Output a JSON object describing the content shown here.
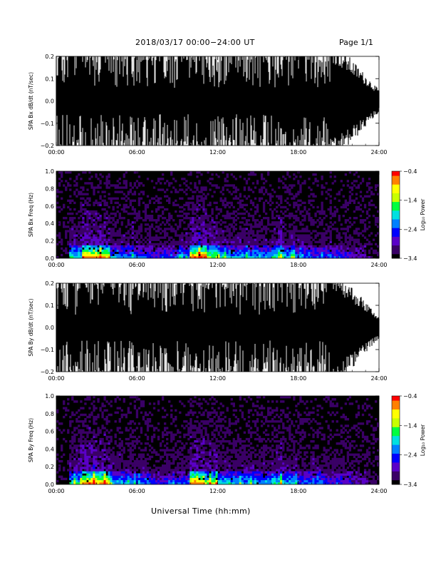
{
  "header": {
    "title": "2018/03/17   00:00−24:00 UT",
    "page": "Page 1/1"
  },
  "footer": {
    "xlabel": "Universal Time (hh:mm)"
  },
  "colors": {
    "trace": "#000000",
    "background": "#000000",
    "colormap": [
      "#000000",
      "#3a0066",
      "#5a00c8",
      "#0000ff",
      "#0080ff",
      "#00e0e0",
      "#00ff40",
      "#c8ff00",
      "#ffff00",
      "#ff8000",
      "#ff0000"
    ]
  },
  "chart_data": [
    {
      "type": "line",
      "ylabel": "SPA Bx dB/dt (nT/sec)",
      "xlim": [
        "00:00",
        "24:00"
      ],
      "xticks": [
        "00:00",
        "06:00",
        "12:00",
        "18:00",
        "24:00"
      ],
      "ylim": [
        -0.2,
        0.2
      ],
      "yticks": [
        "−0.2",
        "−0.1",
        "0.0",
        "0.1",
        "0.2"
      ],
      "description_level": "dense oscillating trace saturating ±0.2 most of the day, amplitude decreasing after 21:00 to about ±0.05 by 24:00"
    },
    {
      "type": "heatmap",
      "ylabel": "SPA Bx Freq (Hz)",
      "xlim": [
        "00:00",
        "24:00"
      ],
      "xticks": [
        "00:00",
        "06:00",
        "12:00",
        "18:00",
        "24:00"
      ],
      "ylim": [
        0.0,
        1.0
      ],
      "yticks": [
        "0.0",
        "0.2",
        "0.4",
        "0.6",
        "0.8",
        "1.0"
      ],
      "colorbar": {
        "label": "Log₁₀ Power",
        "range": [
          -3.4,
          -0.4
        ],
        "ticks": [
          "−0.4",
          "−1.4",
          "−2.4",
          "−3.4"
        ]
      }
    },
    {
      "type": "line",
      "ylabel": "SPA By dB/dt (nT/sec)",
      "xlim": [
        "00:00",
        "24:00"
      ],
      "xticks": [
        "00:00",
        "06:00",
        "12:00",
        "18:00",
        "24:00"
      ],
      "ylim": [
        -0.2,
        0.2
      ],
      "yticks": [
        "−0.2",
        "−0.1",
        "0.0",
        "0.1",
        "0.2"
      ]
    },
    {
      "type": "heatmap",
      "ylabel": "SPA By Freq (Hz)",
      "xlim": [
        "00:00",
        "24:00"
      ],
      "xticks": [
        "00:00",
        "06:00",
        "12:00",
        "18:00",
        "24:00"
      ],
      "ylim": [
        0.0,
        1.0
      ],
      "yticks": [
        "0.0",
        "0.2",
        "0.4",
        "0.6",
        "0.8",
        "1.0"
      ],
      "colorbar": {
        "label": "Log₁₀ Power",
        "range": [
          -3.4,
          -0.4
        ],
        "ticks": [
          "−0.4",
          "−1.4",
          "−2.4",
          "−3.4"
        ]
      }
    }
  ]
}
